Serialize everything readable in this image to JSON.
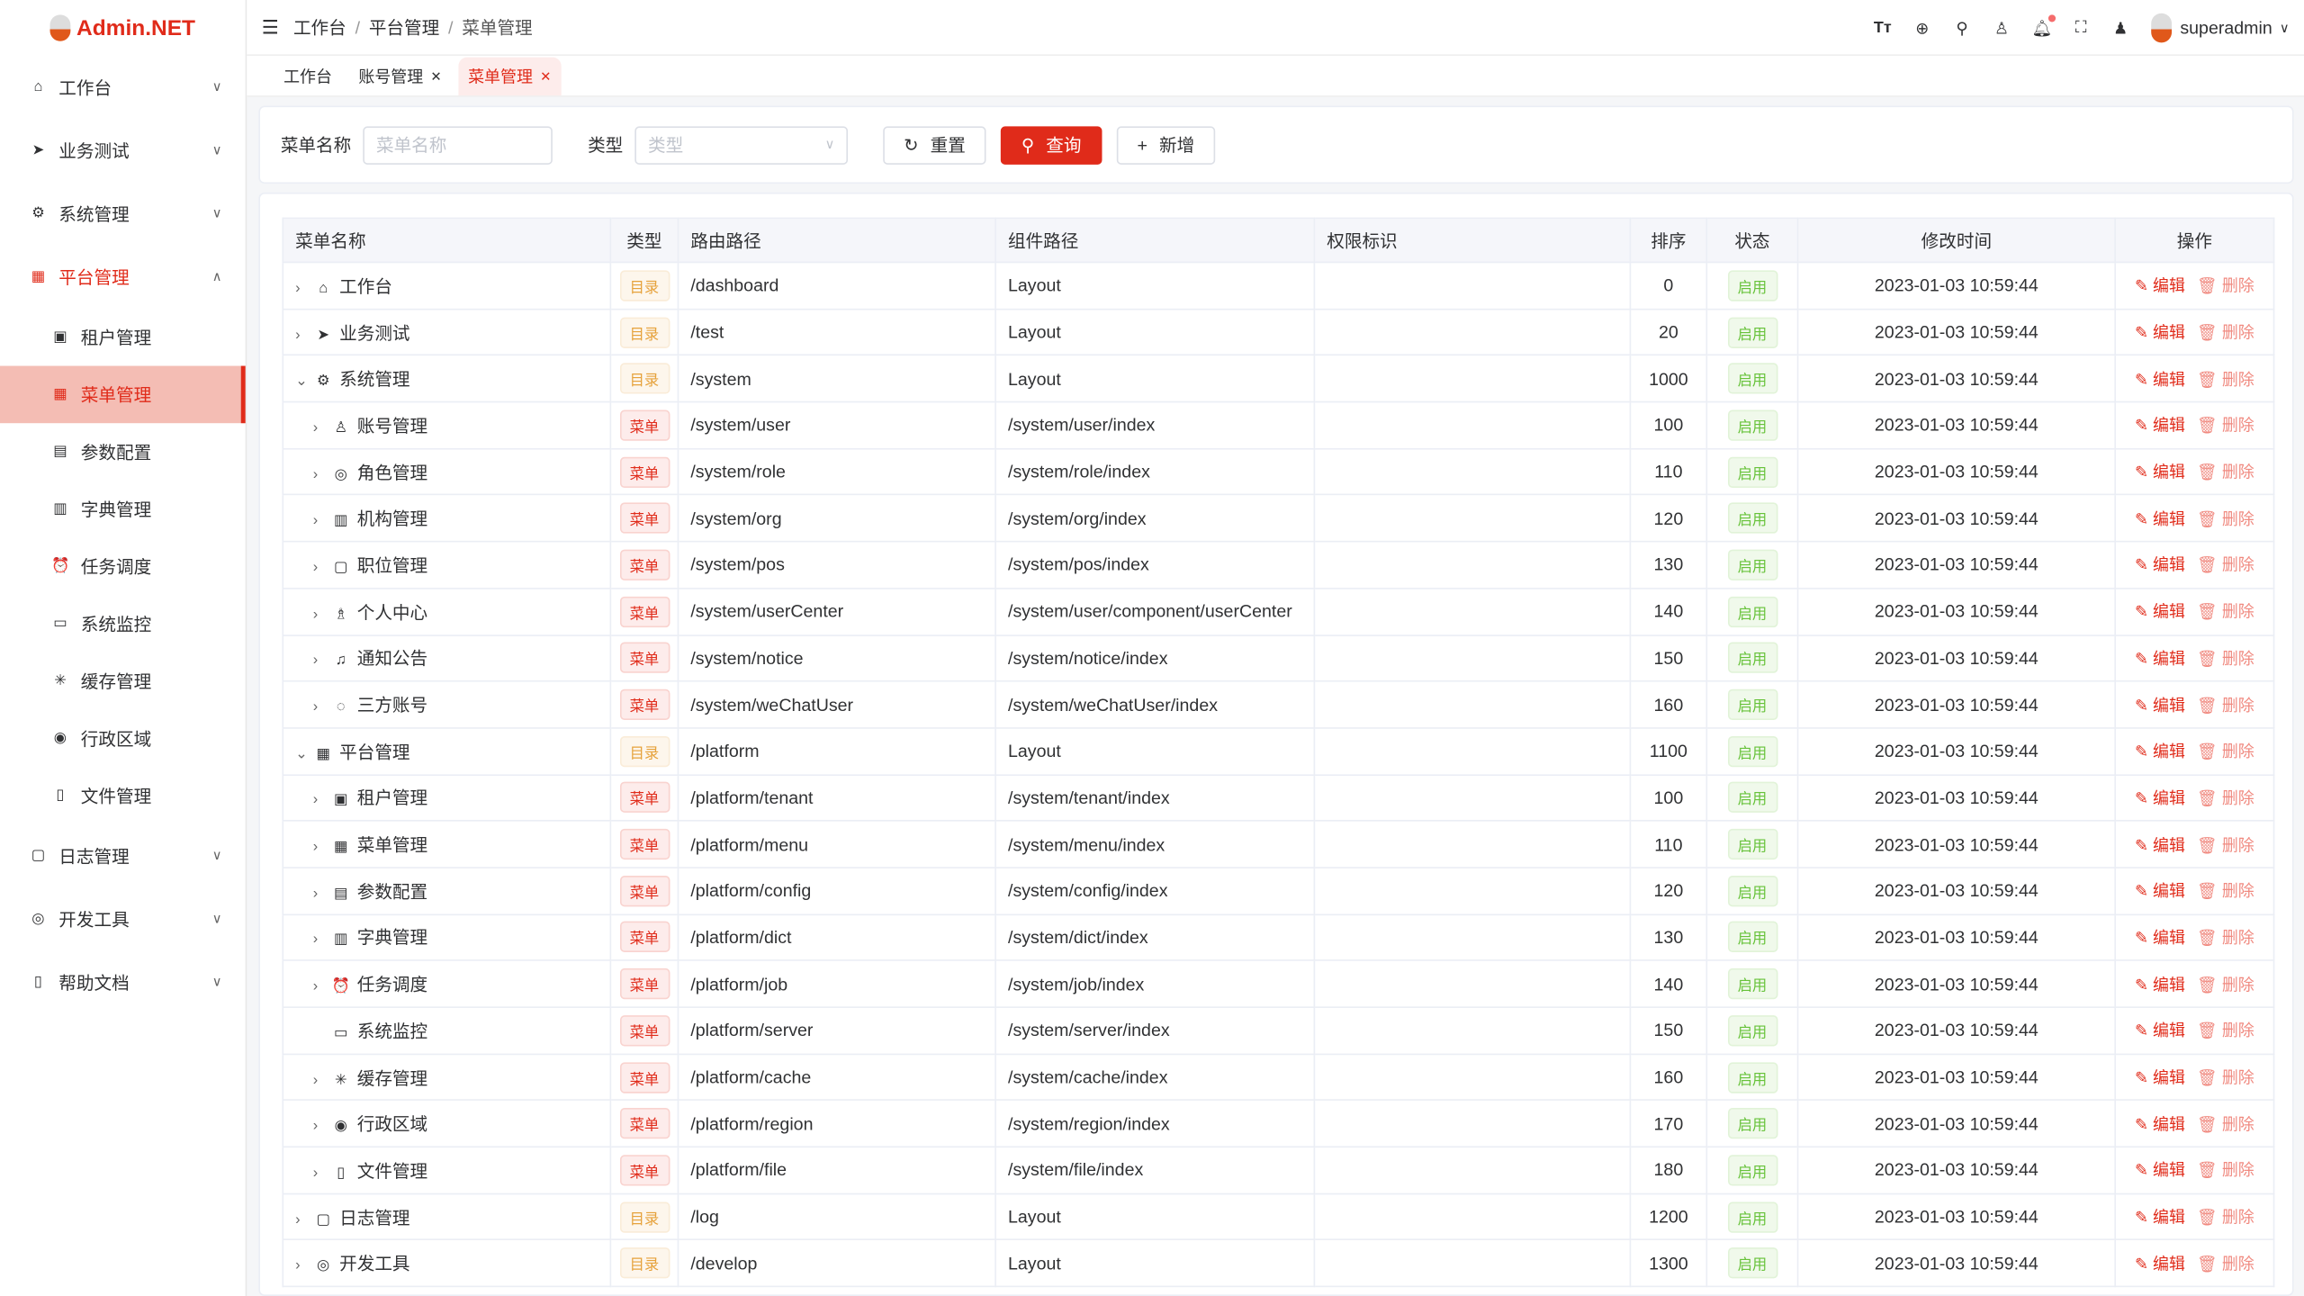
{
  "app": {
    "logo_text": "Admin.NET",
    "brand_color": "#e02b1a"
  },
  "sidebar": {
    "items": [
      {
        "label": "工作台",
        "icon": "home-icon",
        "glyph": "⌂"
      },
      {
        "label": "业务测试",
        "icon": "send-icon",
        "glyph": "➤"
      },
      {
        "label": "系统管理",
        "icon": "gear-icon",
        "glyph": "⚙"
      },
      {
        "label": "平台管理",
        "icon": "grid-icon",
        "glyph": "▦",
        "open": true,
        "children": [
          {
            "label": "租户管理",
            "icon": "tenant-icon",
            "glyph": "▣"
          },
          {
            "label": "菜单管理",
            "icon": "grid-icon",
            "glyph": "▦",
            "active": true
          },
          {
            "label": "参数配置",
            "icon": "config-icon",
            "glyph": "▤"
          },
          {
            "label": "字典管理",
            "icon": "book-icon",
            "glyph": "▥"
          },
          {
            "label": "任务调度",
            "icon": "alarm-icon",
            "glyph": "⏰"
          },
          {
            "label": "系统监控",
            "icon": "monitor-icon",
            "glyph": "▭"
          },
          {
            "label": "缓存管理",
            "icon": "loading-icon",
            "glyph": "✳"
          },
          {
            "label": "行政区域",
            "icon": "location-icon",
            "glyph": "◉"
          },
          {
            "label": "文件管理",
            "icon": "document-icon",
            "glyph": "▯"
          }
        ]
      },
      {
        "label": "日志管理",
        "icon": "log-icon",
        "glyph": "▢"
      },
      {
        "label": "开发工具",
        "icon": "tool-icon",
        "glyph": "◎"
      },
      {
        "label": "帮助文档",
        "icon": "help-doc-icon",
        "glyph": "▯"
      }
    ]
  },
  "header": {
    "breadcrumb": [
      "工作台",
      "平台管理",
      "菜单管理"
    ],
    "username": "superadmin"
  },
  "tabs": [
    {
      "label": "工作台",
      "closable": false
    },
    {
      "label": "账号管理",
      "closable": true
    },
    {
      "label": "菜单管理",
      "closable": true,
      "active": true
    }
  ],
  "search": {
    "name_label": "菜单名称",
    "name_placeholder": "菜单名称",
    "type_label": "类型",
    "type_placeholder": "类型",
    "reset": "重置",
    "query": "查询",
    "add": "新增"
  },
  "table": {
    "columns": [
      "菜单名称",
      "类型",
      "路由路径",
      "组件路径",
      "权限标识",
      "排序",
      "状态",
      "修改时间",
      "操作"
    ],
    "edit_label": "编辑",
    "delete_label": "删除",
    "rows": [
      {
        "name": "工作台",
        "glyph": "⌂",
        "level": 0,
        "arrow": "›",
        "type": "目录",
        "kind": "dir",
        "route": "/dashboard",
        "component": "Layout",
        "perm": "",
        "sort": "0",
        "status": "启用",
        "time": "2023-01-03 10:59:44"
      },
      {
        "name": "业务测试",
        "glyph": "➤",
        "level": 0,
        "arrow": "›",
        "type": "目录",
        "kind": "dir",
        "route": "/test",
        "component": "Layout",
        "perm": "",
        "sort": "20",
        "status": "启用",
        "time": "2023-01-03 10:59:44"
      },
      {
        "name": "系统管理",
        "glyph": "⚙",
        "level": 0,
        "arrow": "⌄",
        "type": "目录",
        "kind": "dir",
        "route": "/system",
        "component": "Layout",
        "perm": "",
        "sort": "1000",
        "status": "启用",
        "time": "2023-01-03 10:59:44"
      },
      {
        "name": "账号管理",
        "glyph": "♙",
        "level": 1,
        "arrow": "›",
        "type": "菜单",
        "kind": "menu",
        "route": "/system/user",
        "component": "/system/user/index",
        "perm": "",
        "sort": "100",
        "status": "启用",
        "time": "2023-01-03 10:59:44"
      },
      {
        "name": "角色管理",
        "glyph": "◎",
        "level": 1,
        "arrow": "›",
        "type": "菜单",
        "kind": "menu",
        "route": "/system/role",
        "component": "/system/role/index",
        "perm": "",
        "sort": "110",
        "status": "启用",
        "time": "2023-01-03 10:59:44"
      },
      {
        "name": "机构管理",
        "glyph": "▥",
        "level": 1,
        "arrow": "›",
        "type": "菜单",
        "kind": "menu",
        "route": "/system/org",
        "component": "/system/org/index",
        "perm": "",
        "sort": "120",
        "status": "启用",
        "time": "2023-01-03 10:59:44"
      },
      {
        "name": "职位管理",
        "glyph": "▢",
        "level": 1,
        "arrow": "›",
        "type": "菜单",
        "kind": "menu",
        "route": "/system/pos",
        "component": "/system/pos/index",
        "perm": "",
        "sort": "130",
        "status": "启用",
        "time": "2023-01-03 10:59:44"
      },
      {
        "name": "个人中心",
        "glyph": "♗",
        "level": 1,
        "arrow": "›",
        "type": "菜单",
        "kind": "menu",
        "route": "/system/userCenter",
        "component": "/system/user/component/userCenter",
        "perm": "",
        "sort": "140",
        "status": "启用",
        "time": "2023-01-03 10:59:44"
      },
      {
        "name": "通知公告",
        "glyph": "♫",
        "level": 1,
        "arrow": "›",
        "type": "菜单",
        "kind": "menu",
        "route": "/system/notice",
        "component": "/system/notice/index",
        "perm": "",
        "sort": "150",
        "status": "启用",
        "time": "2023-01-03 10:59:44"
      },
      {
        "name": "三方账号",
        "glyph": "◌",
        "level": 1,
        "arrow": "›",
        "type": "菜单",
        "kind": "menu",
        "route": "/system/weChatUser",
        "component": "/system/weChatUser/index",
        "perm": "",
        "sort": "160",
        "status": "启用",
        "time": "2023-01-03 10:59:44"
      },
      {
        "name": "平台管理",
        "glyph": "▦",
        "level": 0,
        "arrow": "⌄",
        "type": "目录",
        "kind": "dir",
        "route": "/platform",
        "component": "Layout",
        "perm": "",
        "sort": "1100",
        "status": "启用",
        "time": "2023-01-03 10:59:44"
      },
      {
        "name": "租户管理",
        "glyph": "▣",
        "level": 1,
        "arrow": "›",
        "type": "菜单",
        "kind": "menu",
        "route": "/platform/tenant",
        "component": "/system/tenant/index",
        "perm": "",
        "sort": "100",
        "status": "启用",
        "time": "2023-01-03 10:59:44"
      },
      {
        "name": "菜单管理",
        "glyph": "▦",
        "level": 1,
        "arrow": "›",
        "type": "菜单",
        "kind": "menu",
        "route": "/platform/menu",
        "component": "/system/menu/index",
        "perm": "",
        "sort": "110",
        "status": "启用",
        "time": "2023-01-03 10:59:44"
      },
      {
        "name": "参数配置",
        "glyph": "▤",
        "level": 1,
        "arrow": "›",
        "type": "菜单",
        "kind": "menu",
        "route": "/platform/config",
        "component": "/system/config/index",
        "perm": "",
        "sort": "120",
        "status": "启用",
        "time": "2023-01-03 10:59:44"
      },
      {
        "name": "字典管理",
        "glyph": "▥",
        "level": 1,
        "arrow": "›",
        "type": "菜单",
        "kind": "menu",
        "route": "/platform/dict",
        "component": "/system/dict/index",
        "perm": "",
        "sort": "130",
        "status": "启用",
        "time": "2023-01-03 10:59:44"
      },
      {
        "name": "任务调度",
        "glyph": "⏰",
        "level": 1,
        "arrow": "›",
        "type": "菜单",
        "kind": "menu",
        "route": "/platform/job",
        "component": "/system/job/index",
        "perm": "",
        "sort": "140",
        "status": "启用",
        "time": "2023-01-03 10:59:44"
      },
      {
        "name": "系统监控",
        "glyph": "▭",
        "level": 1,
        "arrow": "",
        "type": "菜单",
        "kind": "menu",
        "route": "/platform/server",
        "component": "/system/server/index",
        "perm": "",
        "sort": "150",
        "status": "启用",
        "time": "2023-01-03 10:59:44"
      },
      {
        "name": "缓存管理",
        "glyph": "✳",
        "level": 1,
        "arrow": "›",
        "type": "菜单",
        "kind": "menu",
        "route": "/platform/cache",
        "component": "/system/cache/index",
        "perm": "",
        "sort": "160",
        "status": "启用",
        "time": "2023-01-03 10:59:44"
      },
      {
        "name": "行政区域",
        "glyph": "◉",
        "level": 1,
        "arrow": "›",
        "type": "菜单",
        "kind": "menu",
        "route": "/platform/region",
        "component": "/system/region/index",
        "perm": "",
        "sort": "170",
        "status": "启用",
        "time": "2023-01-03 10:59:44"
      },
      {
        "name": "文件管理",
        "glyph": "▯",
        "level": 1,
        "arrow": "›",
        "type": "菜单",
        "kind": "menu",
        "route": "/platform/file",
        "component": "/system/file/index",
        "perm": "",
        "sort": "180",
        "status": "启用",
        "time": "2023-01-03 10:59:44"
      },
      {
        "name": "日志管理",
        "glyph": "▢",
        "level": 0,
        "arrow": "›",
        "type": "目录",
        "kind": "dir",
        "route": "/log",
        "component": "Layout",
        "perm": "",
        "sort": "1200",
        "status": "启用",
        "time": "2023-01-03 10:59:44"
      },
      {
        "name": "开发工具",
        "glyph": "◎",
        "level": 0,
        "arrow": "›",
        "type": "目录",
        "kind": "dir",
        "route": "/develop",
        "component": "Layout",
        "perm": "",
        "sort": "1300",
        "status": "启用",
        "time": "2023-01-03 10:59:44"
      }
    ]
  }
}
